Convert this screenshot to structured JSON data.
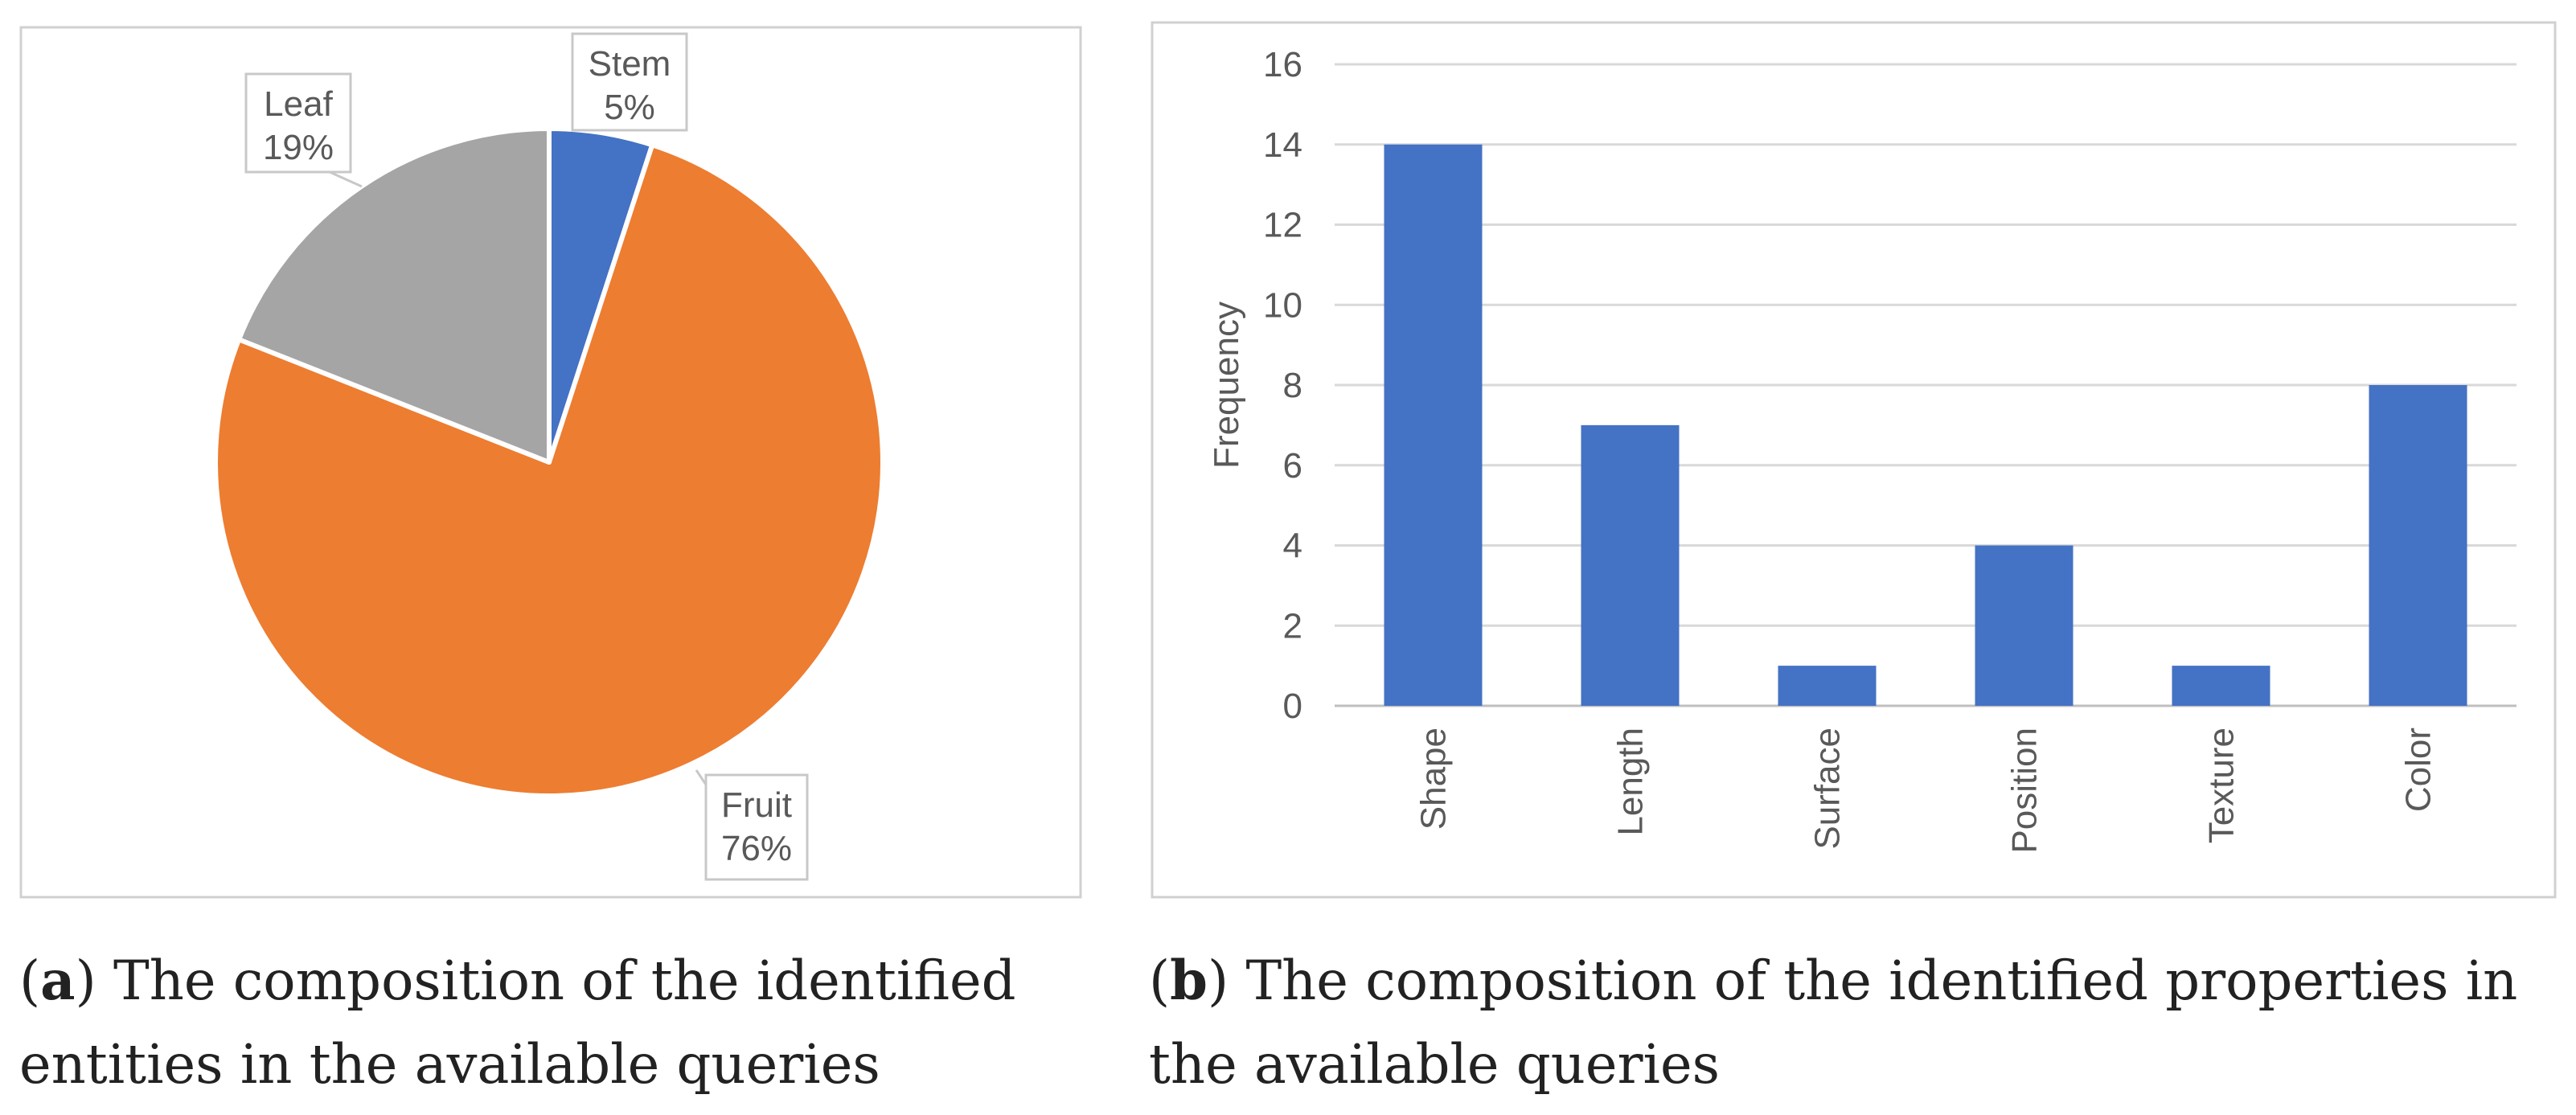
{
  "chart_data": [
    {
      "type": "pie",
      "title": "",
      "slices": [
        {
          "label": "Stem",
          "value": 5,
          "value_label": "5%",
          "color": "#4472c4"
        },
        {
          "label": "Fruit",
          "value": 76,
          "value_label": "76%",
          "color": "#ed7d31"
        },
        {
          "label": "Leaf",
          "value": 19,
          "value_label": "19%",
          "color": "#a5a5a5"
        }
      ]
    },
    {
      "type": "bar",
      "title": "",
      "categories": [
        "Shape",
        "Length",
        "Surface",
        "Position",
        "Texture",
        "Color"
      ],
      "values": [
        14,
        7,
        1,
        4,
        1,
        8
      ],
      "xlabel": "",
      "ylabel": "Frequency",
      "ylim": [
        0,
        16
      ],
      "yticks": [
        0,
        2,
        4,
        6,
        8,
        10,
        12,
        14,
        16
      ],
      "bar_color": "#4472c4",
      "grid": true
    }
  ],
  "captions": {
    "a_letter": "a",
    "a_text": "The composition of the identified entities in the available queries",
    "b_letter": "b",
    "b_text": "The composition of the identified properties in the available queries"
  }
}
